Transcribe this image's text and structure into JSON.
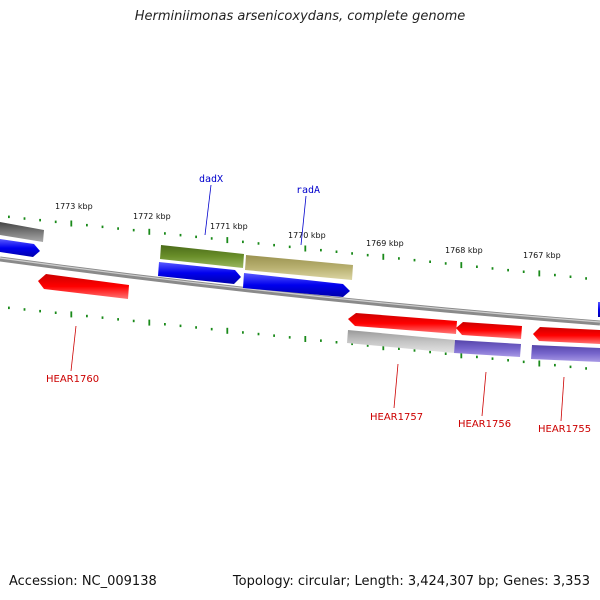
{
  "title": "Herminiimonas arsenicoxydans, complete genome",
  "footer": {
    "accession": "Accession: NC_009138",
    "summary": "Topology: circular; Length: 3,424,307 bp; Genes: 3,353"
  },
  "ticks": [
    "1773 kbp",
    "1772 kbp",
    "1771 kbp",
    "1770 kbp",
    "1769 kbp",
    "1768 kbp",
    "1767 kbp"
  ],
  "gene_labels_top": [
    "dadX",
    "radA"
  ],
  "gene_labels_bottom": [
    "HEAR1760",
    "HEAR1757",
    "HEAR1756",
    "HEAR1755"
  ],
  "colors": {
    "backbone": "#808080",
    "tick": "#1a8a1a",
    "forward_blue": "#0000ee",
    "reverse_red": "#ee0000",
    "olive_dark": "#6a8f2a",
    "olive_light": "#b8b070",
    "gray_dark": "#666666",
    "gray_light": "#bbbbbb",
    "purple": "#7766cc",
    "label_blue": "#0000cc",
    "label_red": "#cc0000"
  }
}
